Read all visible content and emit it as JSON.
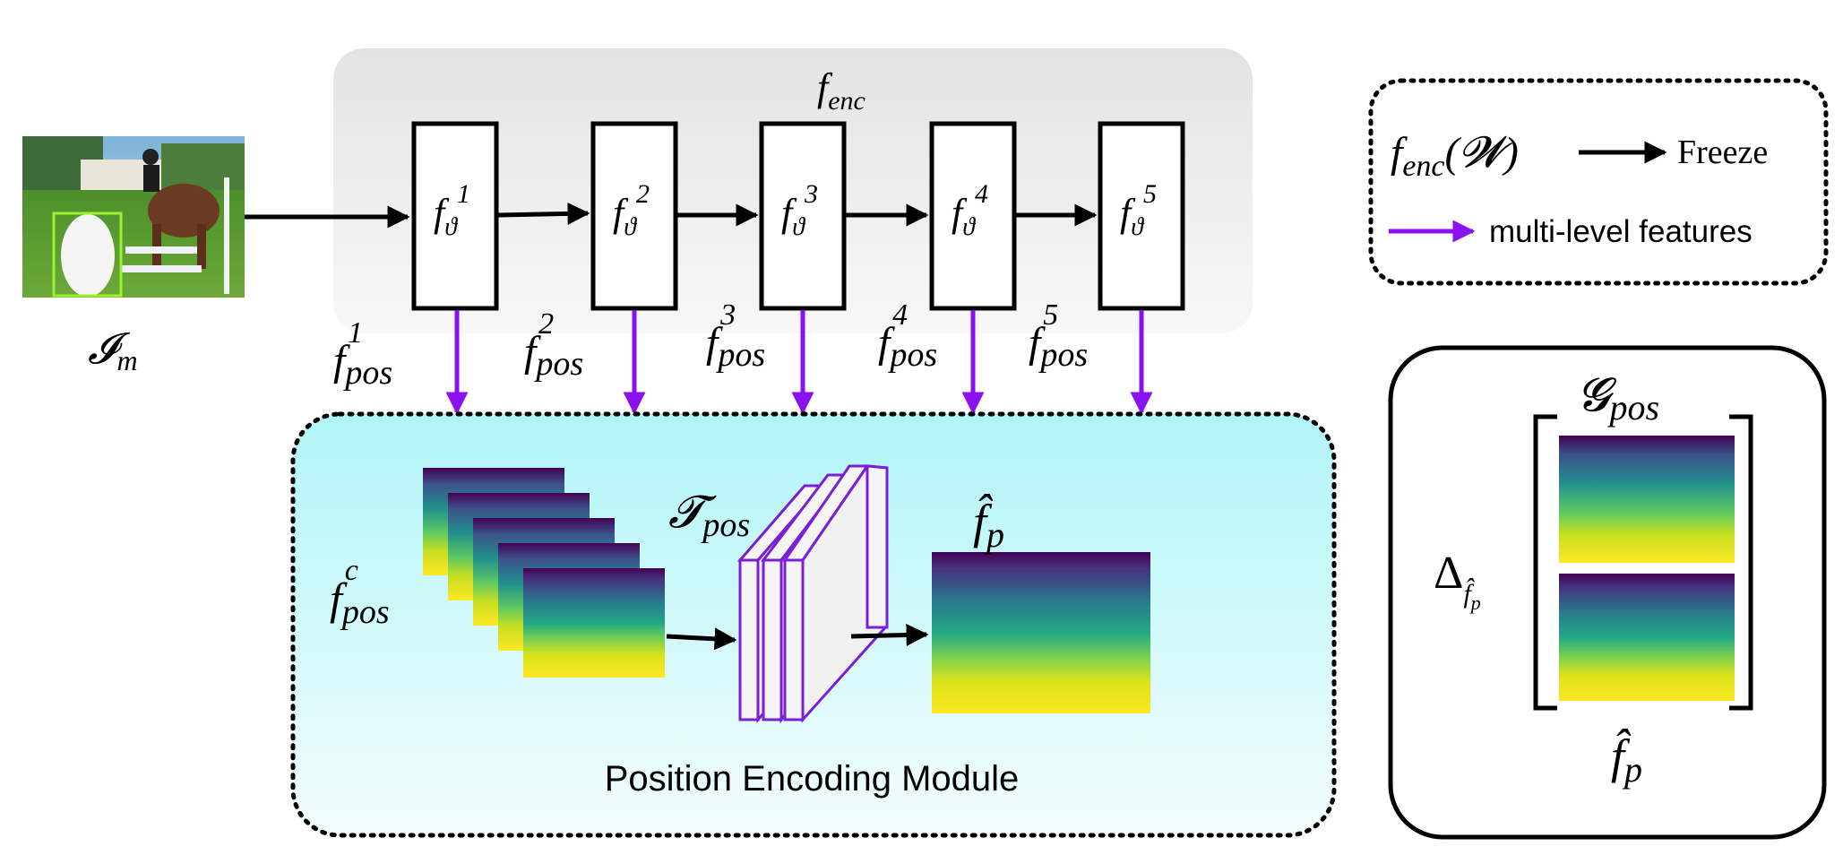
{
  "encoder": {
    "title": "f",
    "title_sub": "enc",
    "stage_symbol": "f",
    "stage_sub": "ϑ",
    "stages": [
      "1",
      "2",
      "3",
      "4",
      "5"
    ]
  },
  "input": {
    "label": "𝓘",
    "label_sub": "m"
  },
  "pos_features": {
    "symbol": "f",
    "sub": "pos",
    "levels": [
      "1",
      "2",
      "3",
      "4",
      "5"
    ]
  },
  "module": {
    "title": "Position Encoding Module",
    "concat_symbol": "f",
    "concat_sub": "pos",
    "concat_sup": "c",
    "transform_symbol": "𝓣",
    "transform_sub": "pos",
    "output_symbol": "f̂",
    "output_sub": "p"
  },
  "legend": {
    "freeze_expr_f": "f",
    "freeze_expr_sub": "enc",
    "freeze_expr_arg": "(𝓦)",
    "freeze_label": "Freeze",
    "features_label": "multi-level features"
  },
  "loss_box": {
    "delta_symbol": "Δ",
    "delta_sub": "f̂",
    "delta_subsub": "p",
    "top_symbol": "𝓖",
    "top_sub": "pos",
    "bottom_symbol": "f̂",
    "bottom_sub": "p"
  },
  "colors": {
    "arrow_black": "#000000",
    "arrow_purple": "#8a10f0",
    "encoder_bg": "#e9e9e9",
    "module_bg_top": "#b4f6f8",
    "module_bg_bottom": "#f2fdfd",
    "viridis_dark": "#440154",
    "viridis_mid": "#21918c",
    "viridis_yellow": "#fde725"
  }
}
